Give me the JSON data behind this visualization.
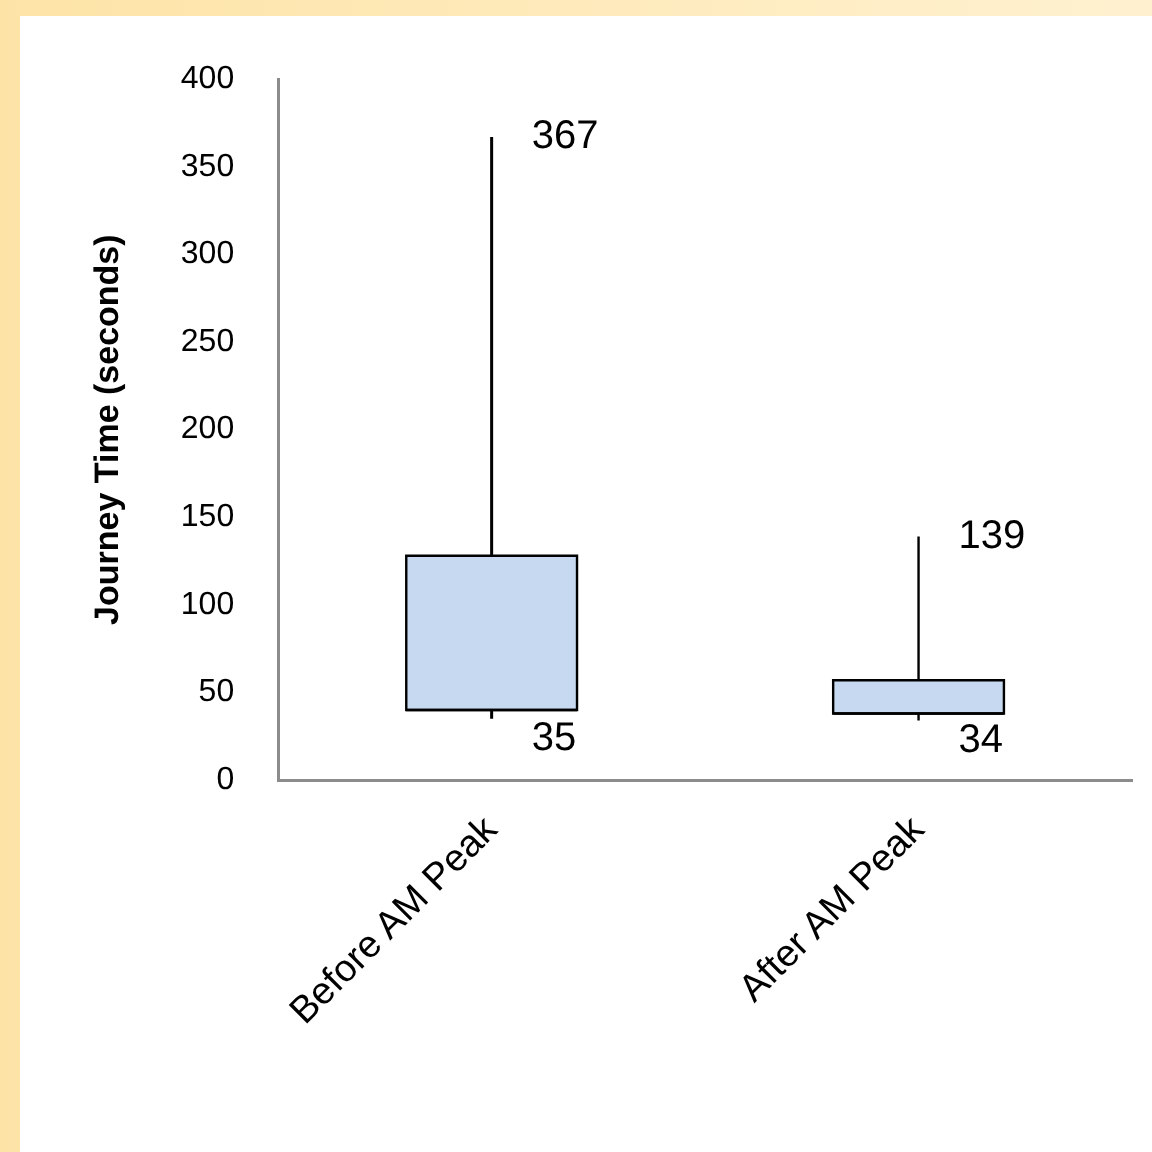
{
  "chart_data": {
    "type": "box",
    "ylabel": "Journey Time (seconds)",
    "categories": [
      "Before AM Peak",
      "After AM Peak"
    ],
    "color": "#c6d9f0",
    "boxes": [
      {
        "low": 35,
        "q1": 40,
        "median": 40,
        "q3": 128,
        "high": 367
      },
      {
        "low": 34,
        "q1": 38,
        "median": 38,
        "q3": 57,
        "high": 139
      }
    ],
    "ylim": [
      0,
      400
    ],
    "yticks": [
      0,
      50,
      100,
      150,
      200,
      250,
      300,
      350,
      400
    ],
    "annotations": [
      {
        "text": "367",
        "x": "Before AM Peak",
        "y": 367
      },
      {
        "text": "35",
        "x": "Before AM Peak",
        "y": 35
      },
      {
        "text": "139",
        "x": "After AM Peak",
        "y": 139
      },
      {
        "text": "34",
        "x": "After AM Peak",
        "y": 34
      }
    ]
  }
}
